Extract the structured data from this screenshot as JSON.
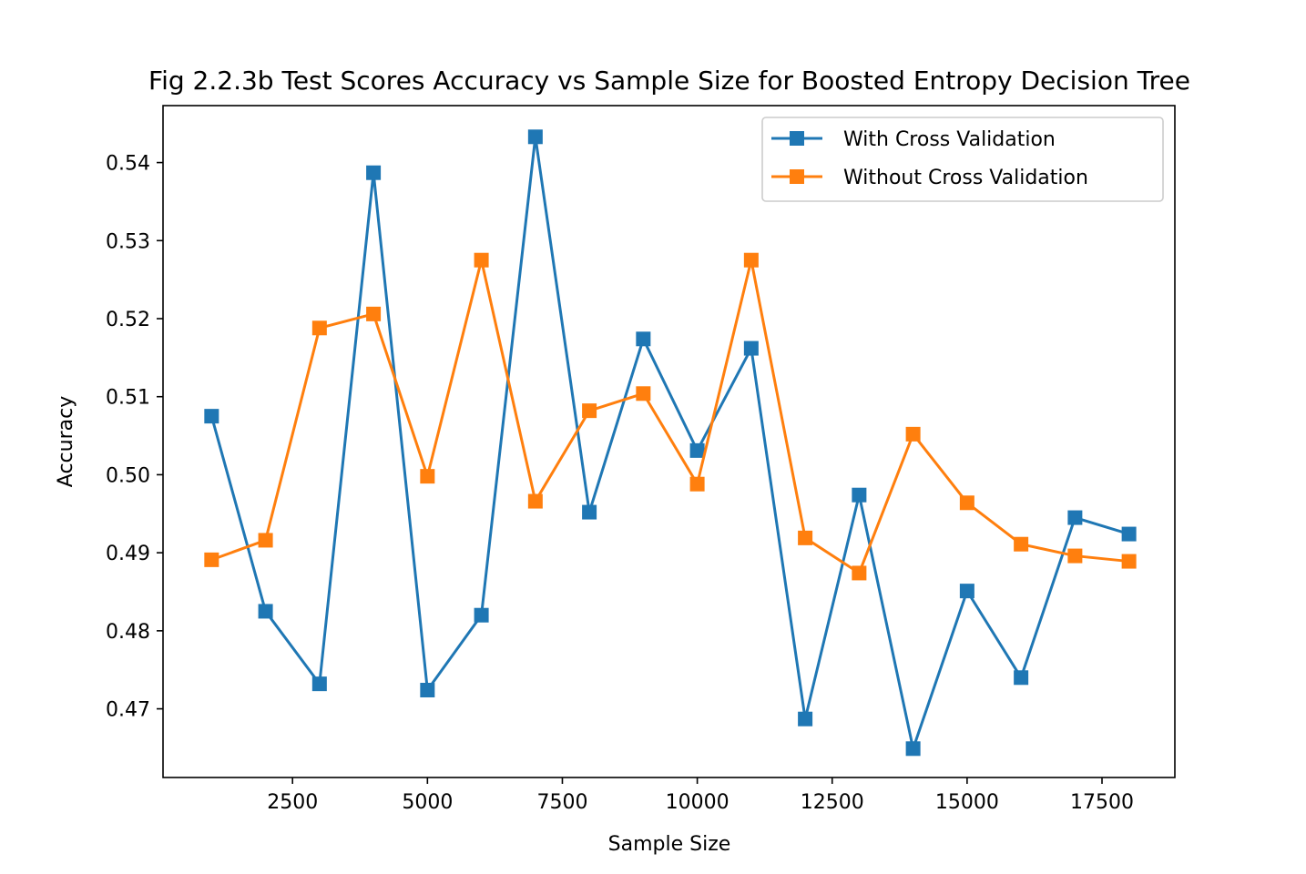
{
  "chart_data": {
    "type": "line",
    "title": "Fig 2.2.3b Test Scores Accuracy vs Sample Size for Boosted Entropy Decision Tree",
    "xlabel": "Sample Size",
    "ylabel": "Accuracy",
    "xlim": [
      100,
      18850
    ],
    "ylim": [
      0.4612,
      0.5473
    ],
    "xticks": [
      2500,
      5000,
      7500,
      10000,
      12500,
      15000,
      17500
    ],
    "yticks": [
      0.47,
      0.48,
      0.49,
      0.5,
      0.51,
      0.52,
      0.53,
      0.54
    ],
    "ytick_labels": [
      "0.47",
      "0.48",
      "0.49",
      "0.50",
      "0.51",
      "0.52",
      "0.53",
      "0.54"
    ],
    "grid": false,
    "legend_position": "top-right",
    "x": [
      1000,
      2000,
      3000,
      4000,
      5000,
      6000,
      7000,
      8000,
      9000,
      10000,
      11000,
      12000,
      13000,
      14000,
      15000,
      16000,
      17000,
      18000
    ],
    "series": [
      {
        "name": "With Cross Validation",
        "color": "#1f77b4",
        "marker": "square",
        "values": [
          0.5075,
          0.4825,
          0.4732,
          0.5387,
          0.4724,
          0.482,
          0.5433,
          0.4952,
          0.5174,
          0.5031,
          0.5162,
          0.4687,
          0.4974,
          0.4649,
          0.4851,
          0.474,
          0.4945,
          0.4924
        ]
      },
      {
        "name": "Without Cross Validation",
        "color": "#ff7f0e",
        "marker": "square",
        "values": [
          0.4891,
          0.4916,
          0.5188,
          0.5206,
          0.4998,
          0.5275,
          0.4966,
          0.5082,
          0.5104,
          0.4988,
          0.5275,
          0.4919,
          0.4874,
          0.5052,
          0.4964,
          0.4911,
          0.4896,
          0.4889
        ]
      }
    ]
  }
}
